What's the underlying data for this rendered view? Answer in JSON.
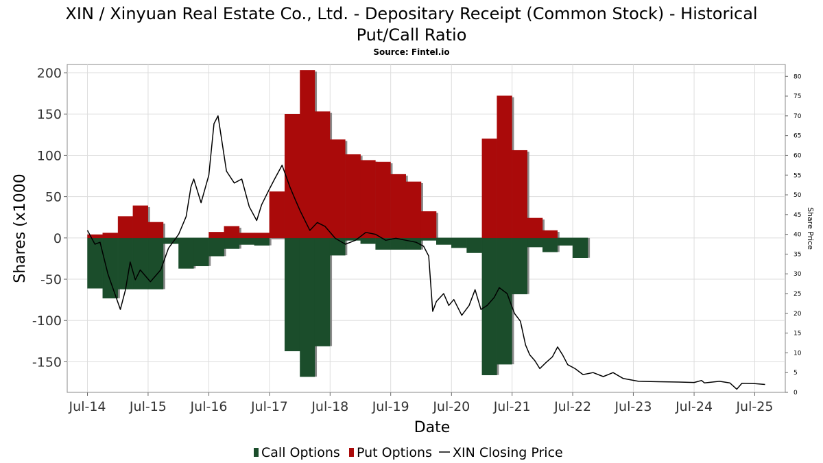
{
  "chart_data": {
    "type": "bar",
    "title": "XIN / Xinyuan Real Estate Co., Ltd. - Depositary Receipt (Common Stock) - Historical",
    "title_line2": "Put/Call Ratio",
    "subtitle": "Source: Fintel.io",
    "xlabel": "Date",
    "ylabel": "Shares (x1000",
    "y2label": "Share Price",
    "x_ticks": [
      "Jul-14",
      "Jul-15",
      "Jul-16",
      "Jul-17",
      "Jul-18",
      "Jul-19",
      "Jul-20",
      "Jul-21",
      "Jul-22",
      "Jul-23",
      "Jul-24",
      "Jul-25"
    ],
    "y_ticks": [
      200,
      150,
      100,
      50,
      0,
      -50,
      -100,
      -150
    ],
    "y2_ticks": [
      80,
      75,
      70,
      65,
      60,
      55,
      50,
      45,
      40,
      35,
      30,
      25,
      20,
      15,
      10,
      5,
      0
    ],
    "ylim": [
      -187,
      210
    ],
    "y2lim": [
      0,
      83
    ],
    "xlim": [
      "2014-03-01",
      "2026-01-01"
    ],
    "grid": true,
    "legend_position": "bottom",
    "legend": [
      "Call Options",
      "Put Options",
      "XIN Closing Price"
    ],
    "colors": {
      "calls": "#1b4d2b",
      "puts": "#aa0a0a",
      "price": "#000000",
      "shadow": "#8c8c8c"
    },
    "series": [
      {
        "name": "Call Options",
        "kind": "bar",
        "values": [
          [
            "2014-07-01",
            "2014-09-30",
            -61
          ],
          [
            "2014-10-01",
            "2014-12-31",
            -73
          ],
          [
            "2015-01-01",
            "2015-03-31",
            -62
          ],
          [
            "2015-04-01",
            "2015-06-30",
            -62
          ],
          [
            "2015-07-01",
            "2015-09-30",
            -62
          ],
          [
            "2015-10-01",
            "2015-12-31",
            -7
          ],
          [
            "2016-01-01",
            "2016-03-31",
            -37
          ],
          [
            "2016-04-01",
            "2016-06-30",
            -34
          ],
          [
            "2016-07-01",
            "2016-09-30",
            -22
          ],
          [
            "2016-10-01",
            "2016-12-31",
            -13
          ],
          [
            "2017-01-01",
            "2017-03-31",
            -8
          ],
          [
            "2017-04-01",
            "2017-06-30",
            -9
          ],
          [
            "2017-07-01",
            "2017-09-30",
            0
          ],
          [
            "2017-10-01",
            "2017-12-31",
            -137
          ],
          [
            "2018-01-01",
            "2018-03-31",
            -168
          ],
          [
            "2018-04-01",
            "2018-06-30",
            -131
          ],
          [
            "2018-07-01",
            "2018-09-30",
            -21
          ],
          [
            "2018-10-01",
            "2018-12-31",
            -3
          ],
          [
            "2019-01-01",
            "2019-03-31",
            -7
          ],
          [
            "2019-04-01",
            "2019-06-30",
            -14
          ],
          [
            "2019-07-01",
            "2019-09-30",
            -14
          ],
          [
            "2019-10-01",
            "2019-12-31",
            -14
          ],
          [
            "2020-01-01",
            "2020-03-31",
            -3
          ],
          [
            "2020-04-01",
            "2020-06-30",
            -8
          ],
          [
            "2020-07-01",
            "2020-09-30",
            -12
          ],
          [
            "2020-10-01",
            "2020-12-31",
            -18
          ],
          [
            "2021-01-01",
            "2021-03-31",
            -166
          ],
          [
            "2021-04-01",
            "2021-06-30",
            -153
          ],
          [
            "2021-07-01",
            "2021-09-30",
            -68
          ],
          [
            "2021-10-01",
            "2021-12-31",
            -11
          ],
          [
            "2022-01-01",
            "2022-03-31",
            -17
          ],
          [
            "2022-04-01",
            "2022-06-30",
            -9
          ],
          [
            "2022-07-01",
            "2022-09-30",
            -24
          ]
        ]
      },
      {
        "name": "Put Options",
        "kind": "bar",
        "values": [
          [
            "2014-07-01",
            "2014-09-30",
            4
          ],
          [
            "2014-10-01",
            "2014-12-31",
            6
          ],
          [
            "2015-01-01",
            "2015-03-31",
            26
          ],
          [
            "2015-04-01",
            "2015-06-30",
            39
          ],
          [
            "2015-07-01",
            "2015-09-30",
            19
          ],
          [
            "2015-10-01",
            "2015-12-31",
            0
          ],
          [
            "2016-01-01",
            "2016-03-31",
            0
          ],
          [
            "2016-04-01",
            "2016-06-30",
            0
          ],
          [
            "2016-07-01",
            "2016-09-30",
            7
          ],
          [
            "2016-10-01",
            "2016-12-31",
            14
          ],
          [
            "2017-01-01",
            "2017-03-31",
            6
          ],
          [
            "2017-04-01",
            "2017-06-30",
            6
          ],
          [
            "2017-07-01",
            "2017-09-30",
            56
          ],
          [
            "2017-10-01",
            "2017-12-31",
            150
          ],
          [
            "2018-01-01",
            "2018-03-31",
            203
          ],
          [
            "2018-04-01",
            "2018-06-30",
            153
          ],
          [
            "2018-07-01",
            "2018-09-30",
            119
          ],
          [
            "2018-10-01",
            "2018-12-31",
            101
          ],
          [
            "2019-01-01",
            "2019-03-31",
            94
          ],
          [
            "2019-04-01",
            "2019-06-30",
            92
          ],
          [
            "2019-07-01",
            "2019-09-30",
            77
          ],
          [
            "2019-10-01",
            "2019-12-31",
            68
          ],
          [
            "2020-01-01",
            "2020-03-31",
            32
          ],
          [
            "2020-04-01",
            "2020-06-30",
            0
          ],
          [
            "2020-07-01",
            "2020-09-30",
            0
          ],
          [
            "2020-10-01",
            "2020-12-31",
            0
          ],
          [
            "2021-01-01",
            "2021-03-31",
            120
          ],
          [
            "2021-04-01",
            "2021-06-30",
            172
          ],
          [
            "2021-07-01",
            "2021-09-30",
            106
          ],
          [
            "2021-10-01",
            "2021-12-31",
            24
          ],
          [
            "2022-01-01",
            "2022-03-31",
            9
          ],
          [
            "2022-04-01",
            "2022-06-30",
            0
          ],
          [
            "2022-07-01",
            "2022-09-30",
            0
          ]
        ]
      },
      {
        "name": "XIN Closing Price",
        "kind": "line",
        "axis": "right",
        "points": [
          [
            "2014-07-01",
            41.0
          ],
          [
            "2014-08-15",
            37.5
          ],
          [
            "2014-09-15",
            38.0
          ],
          [
            "2014-11-01",
            30.0
          ],
          [
            "2015-01-15",
            21.0
          ],
          [
            "2015-02-15",
            26.0
          ],
          [
            "2015-03-15",
            33.0
          ],
          [
            "2015-04-15",
            28.5
          ],
          [
            "2015-05-15",
            31.0
          ],
          [
            "2015-07-15",
            28.0
          ],
          [
            "2015-09-15",
            31.0
          ],
          [
            "2015-11-01",
            36.5
          ],
          [
            "2016-01-01",
            40.0
          ],
          [
            "2016-02-15",
            44.5
          ],
          [
            "2016-03-15",
            52.0
          ],
          [
            "2016-04-01",
            54.0
          ],
          [
            "2016-05-15",
            48.0
          ],
          [
            "2016-07-01",
            55.0
          ],
          [
            "2016-08-01",
            68.0
          ],
          [
            "2016-08-25",
            70.0
          ],
          [
            "2016-10-15",
            56.0
          ],
          [
            "2016-12-01",
            53.0
          ],
          [
            "2017-01-15",
            54.0
          ],
          [
            "2017-03-01",
            47.0
          ],
          [
            "2017-04-15",
            43.5
          ],
          [
            "2017-05-15",
            47.5
          ],
          [
            "2017-07-01",
            51.5
          ],
          [
            "2017-08-01",
            54.0
          ],
          [
            "2017-09-15",
            57.5
          ],
          [
            "2017-11-01",
            52.0
          ],
          [
            "2017-12-01",
            49.0
          ],
          [
            "2018-01-01",
            46.0
          ],
          [
            "2018-03-01",
            41.0
          ],
          [
            "2018-04-15",
            43.0
          ],
          [
            "2018-06-01",
            42.0
          ],
          [
            "2018-08-01",
            39.0
          ],
          [
            "2018-10-01",
            37.5
          ],
          [
            "2018-12-01",
            38.5
          ],
          [
            "2019-02-01",
            40.5
          ],
          [
            "2019-04-01",
            40.0
          ],
          [
            "2019-06-01",
            38.5
          ],
          [
            "2019-08-01",
            39.0
          ],
          [
            "2019-10-01",
            38.5
          ],
          [
            "2019-12-01",
            38.0
          ],
          [
            "2020-01-15",
            37.0
          ],
          [
            "2020-02-15",
            34.5
          ],
          [
            "2020-03-10",
            20.5
          ],
          [
            "2020-04-01",
            23.0
          ],
          [
            "2020-05-15",
            25.0
          ],
          [
            "2020-06-15",
            22.0
          ],
          [
            "2020-07-15",
            23.5
          ],
          [
            "2020-09-01",
            19.5
          ],
          [
            "2020-10-15",
            22.0
          ],
          [
            "2020-11-20",
            26.0
          ],
          [
            "2020-12-25",
            21.0
          ],
          [
            "2021-02-01",
            22.0
          ],
          [
            "2021-03-15",
            24.0
          ],
          [
            "2021-04-15",
            26.5
          ],
          [
            "2021-06-01",
            25.0
          ],
          [
            "2021-07-15",
            20.0
          ],
          [
            "2021-08-20",
            18.0
          ],
          [
            "2021-09-20",
            12.0
          ],
          [
            "2021-10-15",
            9.5
          ],
          [
            "2021-11-15",
            8.0
          ],
          [
            "2021-12-15",
            6.0
          ],
          [
            "2022-01-20",
            7.5
          ],
          [
            "2022-03-01",
            9.0
          ],
          [
            "2022-04-01",
            11.5
          ],
          [
            "2022-05-01",
            9.5
          ],
          [
            "2022-06-01",
            7.0
          ],
          [
            "2022-07-15",
            6.0
          ],
          [
            "2022-09-01",
            4.5
          ],
          [
            "2022-11-01",
            5.0
          ],
          [
            "2023-01-01",
            4.0
          ],
          [
            "2023-03-01",
            5.0
          ],
          [
            "2023-05-01",
            3.5
          ],
          [
            "2023-08-01",
            2.8
          ],
          [
            "2023-12-01",
            2.7
          ],
          [
            "2024-04-01",
            2.6
          ],
          [
            "2024-07-01",
            2.5
          ],
          [
            "2024-08-15",
            3.0
          ],
          [
            "2024-09-01",
            2.4
          ],
          [
            "2024-12-01",
            2.8
          ],
          [
            "2025-02-01",
            2.4
          ],
          [
            "2025-03-15",
            0.8
          ],
          [
            "2025-04-15",
            2.3
          ],
          [
            "2025-07-01",
            2.2
          ],
          [
            "2025-09-01",
            2.0
          ]
        ]
      }
    ]
  }
}
